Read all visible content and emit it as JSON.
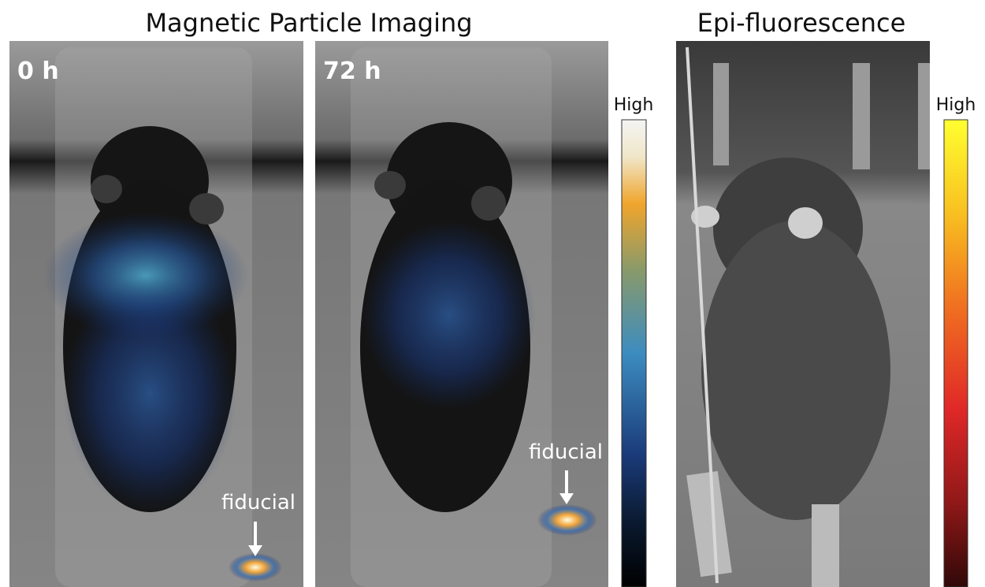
{
  "titles": {
    "mpi": "Magnetic Particle Imaging",
    "epi": "Epi-fluorescence"
  },
  "panels": [
    {
      "label": "0 h",
      "annotation": "fiducial"
    },
    {
      "label": "72 h",
      "annotation": "fiducial"
    }
  ],
  "colorbars": [
    {
      "label": "High"
    },
    {
      "label": "High"
    }
  ]
}
